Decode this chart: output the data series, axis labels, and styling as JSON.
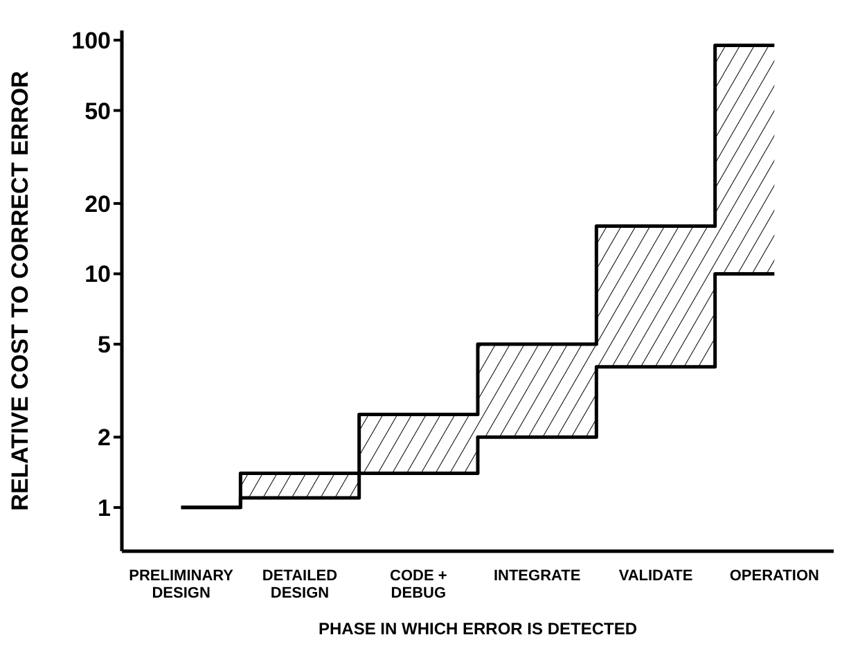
{
  "chart_data": {
    "type": "step",
    "xlabel": "PHASE IN WHICH ERROR IS DETECTED",
    "ylabel": "RELATIVE COST TO CORRECT ERROR",
    "categories": [
      "PRELIMINARY\nDESIGN",
      "DETAILED\nDESIGN",
      "CODE +\nDEBUG",
      "INTEGRATE",
      "VALIDATE",
      "OPERATION"
    ],
    "series": [
      {
        "color": "#000000",
        "values": [
          1,
          1.4,
          2.5,
          5,
          16,
          95
        ],
        "lower": [
          1,
          1.1,
          1.4,
          2,
          4,
          10
        ],
        "upper": [
          1,
          1.4,
          2.5,
          5,
          16,
          95
        ]
      },
      {
        "color": "#000000",
        "values": [
          1,
          1.1,
          1.4,
          2,
          4,
          10
        ]
      }
    ],
    "log": true,
    "ylim": [
      0.65,
      110
    ],
    "yticks": [
      1,
      2,
      5,
      10,
      20,
      50,
      100
    ],
    "grid": false,
    "legend": false
  }
}
